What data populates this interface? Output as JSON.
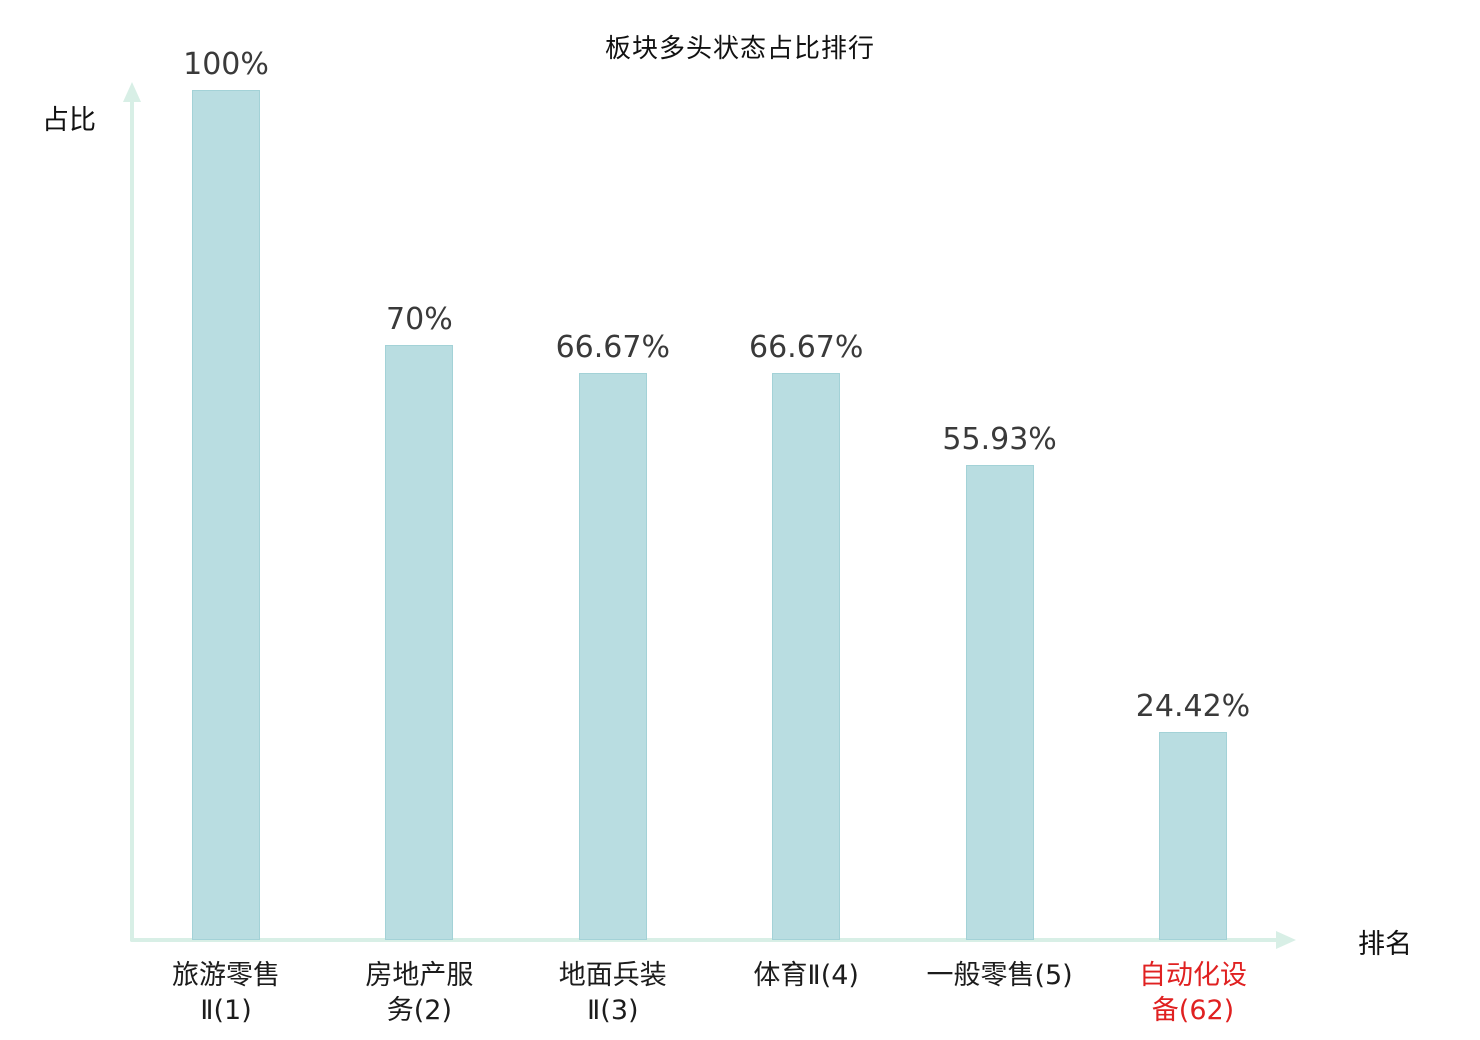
{
  "chart_data": {
    "type": "bar",
    "title": "板块多头状态占比排行",
    "xlabel": "排名",
    "ylabel": "占比",
    "ylim": [
      0,
      100
    ],
    "grid": false,
    "legend": false,
    "bar_color": "#b9dde1",
    "bar_border_color": "#a3d2d7",
    "axis_color": "#d8efe6",
    "value_label_color": "#3a3a3a",
    "category_label_color": "#1c1c1c",
    "highlight_color": "#e02121",
    "highlight_index": 5,
    "categories": [
      "旅游零售Ⅱ(1)",
      "房地产服务(2)",
      "地面兵装Ⅱ(3)",
      "体育Ⅱ(4)",
      "一般零售(5)",
      "自动化设备(62)"
    ],
    "category_label_lines": [
      [
        "旅游零售",
        "Ⅱ(1)"
      ],
      [
        "房地产服",
        "务(2)"
      ],
      [
        "地面兵装",
        "Ⅱ(3)"
      ],
      [
        "体育Ⅱ(4)"
      ],
      [
        "一般零售(5)"
      ],
      [
        "自动化设",
        "备(62)"
      ]
    ],
    "values": [
      100,
      70,
      66.67,
      66.67,
      55.93,
      24.42
    ],
    "value_labels": [
      "100%",
      "70%",
      "66.67%",
      "66.67%",
      "55.93%",
      "24.42%"
    ]
  }
}
